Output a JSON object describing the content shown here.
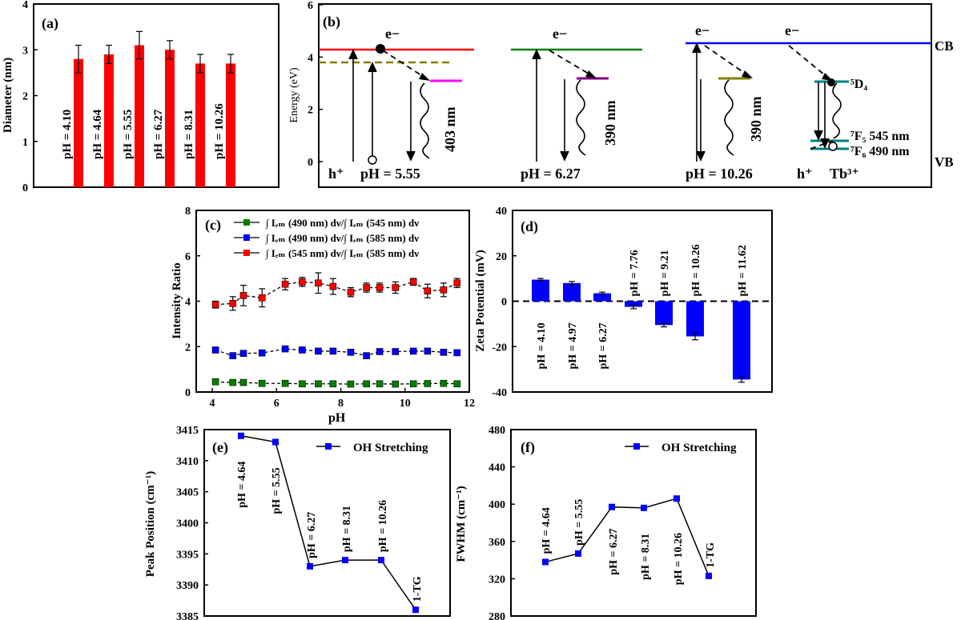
{
  "chart_data": [
    {
      "panel": "(a)",
      "type": "bar",
      "ylabel": "Diameter (nm)",
      "ylim": [
        0,
        4
      ],
      "yticks": [
        0,
        1,
        2,
        3,
        4
      ],
      "categories": [
        "pH = 4.10",
        "pH = 4.64",
        "pH = 5.55",
        "pH = 6.27",
        "pH = 8.31",
        "pH = 10.26"
      ],
      "values": [
        2.8,
        2.9,
        3.1,
        3.0,
        2.7,
        2.7
      ],
      "errors": [
        0.3,
        0.2,
        0.3,
        0.2,
        0.2,
        0.2
      ],
      "color": "#ff0000"
    },
    {
      "panel": "(b)",
      "type": "diagram",
      "ylabel": "Energy (eV)",
      "ylim": [
        0,
        6
      ],
      "yticks": [
        0,
        2,
        4,
        6
      ],
      "band_labels": {
        "cb": "CB",
        "vb": "VB"
      },
      "electron_label": "e−",
      "hole_label": "h⁺",
      "groups": [
        {
          "ph": "pH = 5.55",
          "emission": "403 nm",
          "cb_color": "#ff0000",
          "trap_color": "#ff00ff"
        },
        {
          "ph": "pH = 6.27",
          "emission": "390 nm",
          "cb_color": "#008000",
          "trap_color": "#800080"
        },
        {
          "ph": "pH = 10.26",
          "emission": "390 nm",
          "cb_color": "#0000ff",
          "trap_color": "#808000"
        }
      ],
      "tb": {
        "ion_label": "Tb³⁺",
        "level_top": "⁵D₄",
        "level_545": "⁷F₅ 545 nm",
        "level_490": "⁷F₆ 490 nm",
        "color": "#008080"
      }
    },
    {
      "panel": "(c)",
      "type": "line",
      "xlabel": "pH",
      "ylabel": "Intensity Ratio",
      "xlim": [
        3.5,
        12
      ],
      "ylim": [
        0,
        8
      ],
      "xticks": [
        4,
        6,
        8,
        10,
        12
      ],
      "yticks": [
        0,
        2,
        4,
        6,
        8
      ],
      "x": [
        4.1,
        4.64,
        4.97,
        5.55,
        6.27,
        6.8,
        7.3,
        7.76,
        8.31,
        8.8,
        9.21,
        9.7,
        10.26,
        10.7,
        11.2,
        11.62
      ],
      "series": [
        {
          "name": "∫ Iₑₘ (490 nm) dν/∫ Iₑₘ (545 nm) dν",
          "color": "#008000",
          "values": [
            0.45,
            0.42,
            0.42,
            0.38,
            0.38,
            0.36,
            0.36,
            0.36,
            0.35,
            0.36,
            0.36,
            0.35,
            0.36,
            0.37,
            0.38,
            0.36
          ],
          "errors": [
            0.05,
            0.05,
            0.05,
            0.05,
            0.05,
            0.05,
            0.05,
            0.05,
            0.05,
            0.05,
            0.05,
            0.05,
            0.05,
            0.05,
            0.05,
            0.05
          ]
        },
        {
          "name": "∫ Iₑₘ (490 nm) dν/∫ Iₑₘ (585 nm) dν",
          "color": "#0000ff",
          "values": [
            1.85,
            1.6,
            1.7,
            1.72,
            1.9,
            1.85,
            1.8,
            1.8,
            1.75,
            1.6,
            1.78,
            1.78,
            1.8,
            1.8,
            1.75,
            1.73
          ],
          "errors": [
            0.1,
            0.1,
            0.1,
            0.1,
            0.1,
            0.1,
            0.1,
            0.1,
            0.1,
            0.1,
            0.1,
            0.1,
            0.1,
            0.1,
            0.1,
            0.1
          ]
        },
        {
          "name": "∫ Iₑₘ (545 nm) dν/∫ Iₑₘ (585 nm) dν",
          "color": "#ff0000",
          "values": [
            3.85,
            3.9,
            4.25,
            4.15,
            4.75,
            4.85,
            4.8,
            4.65,
            4.4,
            4.6,
            4.6,
            4.6,
            4.85,
            4.45,
            4.5,
            4.8
          ],
          "errors": [
            0.15,
            0.3,
            0.45,
            0.4,
            0.25,
            0.2,
            0.45,
            0.35,
            0.2,
            0.2,
            0.2,
            0.25,
            0.15,
            0.3,
            0.3,
            0.2
          ]
        }
      ]
    },
    {
      "panel": "(d)",
      "type": "bar",
      "ylabel": "Zeta Potential (mV)",
      "ylim": [
        -40,
        40
      ],
      "yticks": [
        -40,
        -20,
        0,
        20,
        40
      ],
      "categories": [
        "pH = 4.10",
        "pH = 4.97",
        "pH = 6.27",
        "pH = 7.76",
        "pH = 9.21",
        "pH = 10.26",
        "pH = 11.62"
      ],
      "values": [
        9.5,
        8,
        3.5,
        -2.5,
        -10.5,
        -15.5,
        -34.5
      ],
      "errors": [
        0.5,
        0.7,
        0.5,
        0.8,
        0.8,
        1.5,
        1.2
      ],
      "color": "#0000ff"
    },
    {
      "panel": "(e)",
      "type": "line",
      "ylabel": "Peak Position (cm⁻¹)",
      "ylim": [
        3385,
        3415
      ],
      "yticks": [
        3385,
        3390,
        3395,
        3400,
        3405,
        3410,
        3415
      ],
      "legend": "OH Stretching",
      "color": "#0000ff",
      "categories": [
        "pH = 4.64",
        "pH = 5.55",
        "pH = 6.27",
        "pH = 8.31",
        "pH = 10.26",
        "1-TG"
      ],
      "values": [
        3414,
        3413,
        3393,
        3394,
        3394,
        3386
      ]
    },
    {
      "panel": "(f)",
      "type": "line",
      "ylabel": "FWHM (cm⁻¹)",
      "ylim": [
        280,
        480
      ],
      "yticks": [
        280,
        320,
        360,
        400,
        440,
        480
      ],
      "legend": "OH Stretching",
      "color": "#0000ff",
      "categories": [
        "pH = 4.64",
        "pH = 5.55",
        "pH = 6.27",
        "pH = 8.31",
        "pH = 10.26",
        "1-TG"
      ],
      "values": [
        338,
        347,
        397,
        396,
        406,
        323
      ]
    }
  ]
}
